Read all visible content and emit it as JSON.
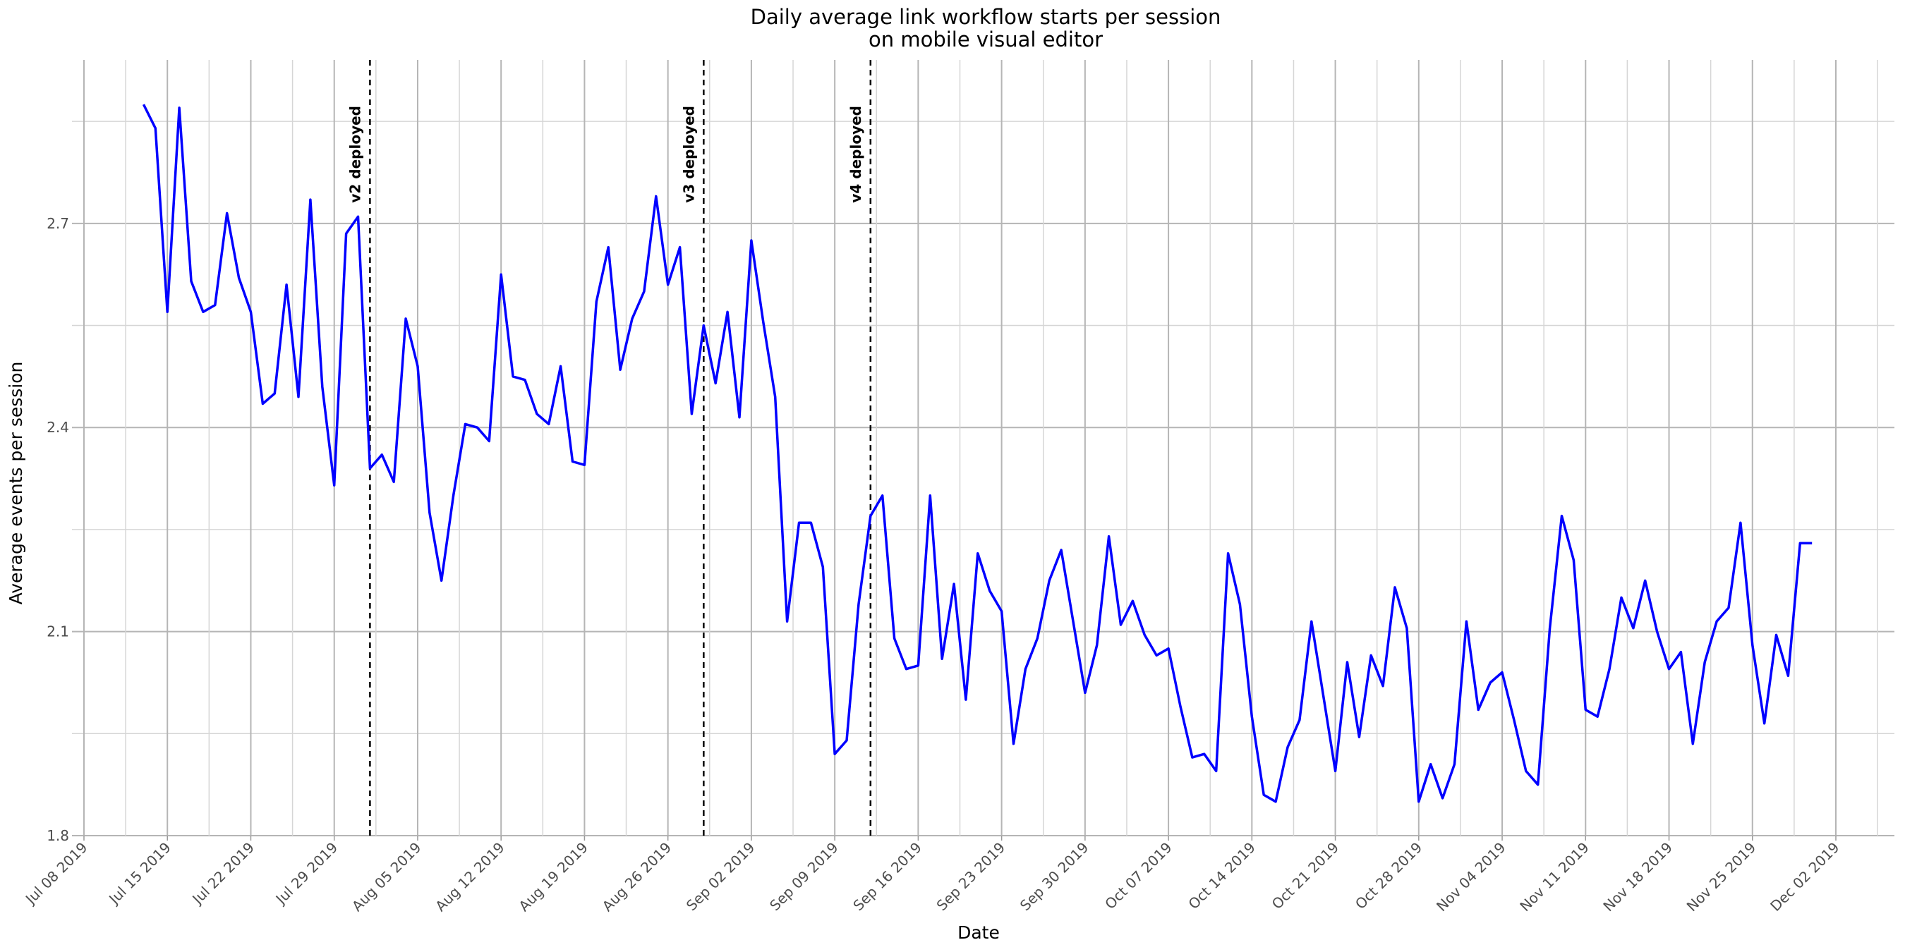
{
  "chart_data": {
    "type": "line",
    "title": "Daily average link workflow starts per session",
    "subtitle": "on mobile visual editor",
    "xlabel": "Date",
    "ylabel": "Average events per session",
    "xlim": [
      "2019-07-08",
      "2019-12-02"
    ],
    "ylim": [
      1.8,
      2.93
    ],
    "grid": true,
    "y_ticks": [
      1.8,
      2.1,
      2.4,
      2.7
    ],
    "y_tick_labels": [
      "1.8",
      "2.1",
      "2.4",
      "2.7"
    ],
    "x_ticks": [
      "2019-07-08",
      "2019-07-15",
      "2019-07-22",
      "2019-07-29",
      "2019-08-05",
      "2019-08-12",
      "2019-08-19",
      "2019-08-26",
      "2019-09-02",
      "2019-09-09",
      "2019-09-16",
      "2019-09-23",
      "2019-09-30",
      "2019-10-07",
      "2019-10-14",
      "2019-10-21",
      "2019-10-28",
      "2019-11-04",
      "2019-11-11",
      "2019-11-18",
      "2019-11-25",
      "2019-12-02"
    ],
    "x_tick_labels": [
      "Jul 08 2019",
      "Jul 15 2019",
      "Jul 22 2019",
      "Jul 29 2019",
      "Aug 05 2019",
      "Aug 12 2019",
      "Aug 19 2019",
      "Aug 26 2019",
      "Sep 02 2019",
      "Sep 09 2019",
      "Sep 16 2019",
      "Sep 23 2019",
      "Sep 30 2019",
      "Oct 07 2019",
      "Oct 14 2019",
      "Oct 21 2019",
      "Oct 28 2019",
      "Nov 04 2019",
      "Nov 11 2019",
      "Nov 18 2019",
      "Nov 25 2019",
      "Dec 02 2019"
    ],
    "annotations": [
      {
        "label": "v2 deployed",
        "x": "2019-08-01"
      },
      {
        "label": "v3 deployed",
        "x": "2019-08-29"
      },
      {
        "label": "v4 deployed",
        "x": "2019-09-12"
      }
    ],
    "series": [
      {
        "color": "#0000ff",
        "start": "2019-07-13",
        "x": [
          "2019-07-13",
          "2019-07-14",
          "2019-07-15",
          "2019-07-16",
          "2019-07-17",
          "2019-07-18",
          "2019-07-19",
          "2019-07-20",
          "2019-07-21",
          "2019-07-22",
          "2019-07-23",
          "2019-07-24",
          "2019-07-25",
          "2019-07-26",
          "2019-07-27",
          "2019-07-28",
          "2019-07-29",
          "2019-07-30",
          "2019-07-31",
          "2019-08-01",
          "2019-08-02",
          "2019-08-03",
          "2019-08-04",
          "2019-08-05",
          "2019-08-06",
          "2019-08-07",
          "2019-08-08",
          "2019-08-09",
          "2019-08-10",
          "2019-08-11",
          "2019-08-12",
          "2019-08-13",
          "2019-08-14",
          "2019-08-15",
          "2019-08-16",
          "2019-08-17",
          "2019-08-18",
          "2019-08-19",
          "2019-08-20",
          "2019-08-21",
          "2019-08-22",
          "2019-08-23",
          "2019-08-24",
          "2019-08-25",
          "2019-08-26",
          "2019-08-27",
          "2019-08-28",
          "2019-08-29",
          "2019-08-30",
          "2019-08-31",
          "2019-09-01",
          "2019-09-02",
          "2019-09-03",
          "2019-09-04",
          "2019-09-05",
          "2019-09-06",
          "2019-09-07",
          "2019-09-08",
          "2019-09-09",
          "2019-09-10",
          "2019-09-11",
          "2019-09-12",
          "2019-09-13",
          "2019-09-14",
          "2019-09-15",
          "2019-09-16",
          "2019-09-17",
          "2019-09-18",
          "2019-09-19",
          "2019-09-20",
          "2019-09-21",
          "2019-09-22",
          "2019-09-23",
          "2019-09-24",
          "2019-09-25",
          "2019-09-26",
          "2019-09-27",
          "2019-09-28",
          "2019-09-29",
          "2019-09-30",
          "2019-10-01",
          "2019-10-02",
          "2019-10-03",
          "2019-10-04",
          "2019-10-05",
          "2019-10-06",
          "2019-10-07",
          "2019-10-08",
          "2019-10-09",
          "2019-10-10",
          "2019-10-11",
          "2019-10-12",
          "2019-10-13",
          "2019-10-14",
          "2019-10-15",
          "2019-10-16",
          "2019-10-17",
          "2019-10-18",
          "2019-10-19",
          "2019-10-20",
          "2019-10-21",
          "2019-10-22",
          "2019-10-23",
          "2019-10-24",
          "2019-10-25",
          "2019-10-26",
          "2019-10-27",
          "2019-10-28",
          "2019-10-29",
          "2019-10-30",
          "2019-10-31",
          "2019-11-01",
          "2019-11-02",
          "2019-11-03",
          "2019-11-04",
          "2019-11-05",
          "2019-11-06",
          "2019-11-07",
          "2019-11-08",
          "2019-11-09",
          "2019-11-10",
          "2019-11-11",
          "2019-11-12",
          "2019-11-13",
          "2019-11-14",
          "2019-11-15",
          "2019-11-16",
          "2019-11-17",
          "2019-11-18",
          "2019-11-19",
          "2019-11-20",
          "2019-11-21",
          "2019-11-22",
          "2019-11-23",
          "2019-11-24",
          "2019-11-25",
          "2019-11-26",
          "2019-11-27",
          "2019-11-28",
          "2019-11-29",
          "2019-11-30"
        ],
        "values": [
          2.875,
          2.84,
          2.57,
          2.87,
          2.615,
          2.57,
          2.58,
          2.715,
          2.62,
          2.57,
          2.435,
          2.45,
          2.61,
          2.445,
          2.735,
          2.46,
          2.315,
          2.685,
          2.71,
          2.34,
          2.36,
          2.32,
          2.56,
          2.49,
          2.275,
          2.175,
          2.3,
          2.405,
          2.4,
          2.38,
          2.625,
          2.475,
          2.47,
          2.42,
          2.405,
          2.49,
          2.35,
          2.345,
          2.585,
          2.665,
          2.485,
          2.56,
          2.6,
          2.74,
          2.61,
          2.665,
          2.42,
          2.55,
          2.465,
          2.57,
          2.415,
          2.675,
          2.555,
          2.445,
          2.115,
          2.26,
          2.26,
          2.195,
          1.92,
          1.94,
          2.14,
          2.27,
          2.3,
          2.09,
          2.045,
          2.05,
          2.3,
          2.06,
          2.17,
          2.0,
          2.215,
          2.16,
          2.13,
          1.935,
          2.045,
          2.09,
          2.175,
          2.22,
          2.115,
          2.01,
          2.08,
          2.24,
          2.11,
          2.145,
          2.095,
          2.065,
          2.075,
          1.99,
          1.915,
          1.92,
          1.895,
          2.215,
          2.14,
          1.975,
          1.86,
          1.85,
          1.93,
          1.97,
          2.115,
          2.005,
          1.895,
          2.055,
          1.945,
          2.065,
          2.02,
          2.165,
          2.105,
          1.85,
          1.905,
          1.855,
          1.905,
          2.115,
          1.985,
          2.025,
          2.04,
          1.97,
          1.895,
          1.875,
          2.105,
          2.27,
          2.205,
          1.985,
          1.975,
          2.045,
          2.15,
          2.105,
          2.175,
          2.1,
          2.045,
          2.07,
          1.935,
          2.055,
          2.115,
          2.135,
          2.26,
          2.08,
          1.965,
          2.095,
          2.035,
          2.23,
          2.23
        ]
      }
    ]
  }
}
